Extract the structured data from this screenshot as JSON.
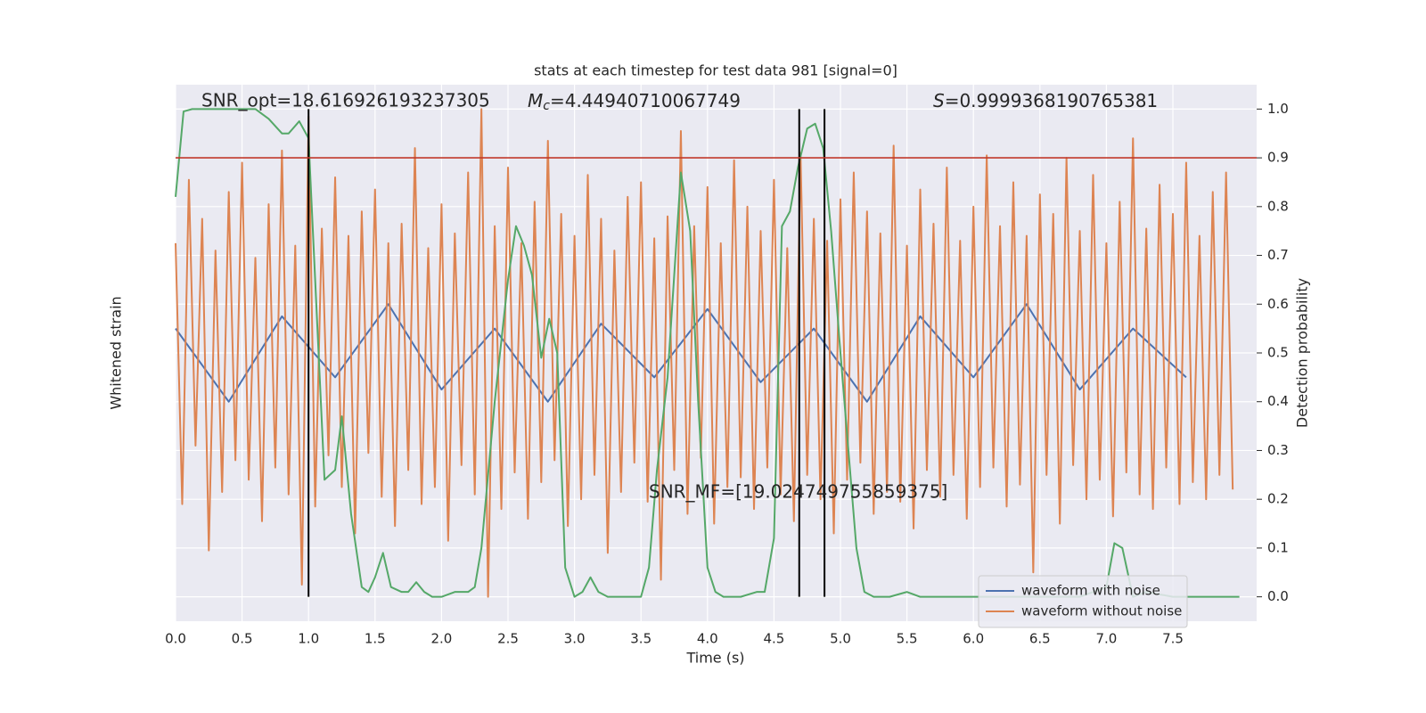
{
  "chart_data": {
    "type": "line",
    "title": "stats at each timestep for test data 981 [signal=0]",
    "xlabel": "Time (s)",
    "ylabel": "Detection probability",
    "y2label": "Whitened strain",
    "xlim": [
      0,
      8.13
    ],
    "ylim": [
      -0.05,
      1.05
    ],
    "y2lim": [
      -1.1,
      1.1
    ],
    "xticks": [
      {
        "value": 0,
        "label": "0.0"
      },
      0.5,
      {
        "value": 1,
        "label": "1.0"
      },
      1.5,
      {
        "value": 2,
        "label": "2.0"
      },
      2.5,
      {
        "value": 3,
        "label": "3.0"
      },
      3.5,
      {
        "value": 4,
        "label": "4.0"
      },
      4.5,
      {
        "value": 5,
        "label": "5.0"
      },
      5.5,
      {
        "value": 6,
        "label": "6.0"
      },
      6.5,
      {
        "value": 7,
        "label": "7.0"
      },
      7.5
    ],
    "yticks": [
      {
        "value": 0,
        "label": "0.0"
      },
      0.1,
      0.2,
      0.3,
      0.4,
      0.5,
      0.6,
      0.7,
      0.8,
      0.9,
      {
        "value": 1,
        "label": "1.0"
      }
    ],
    "grid": true,
    "legend": "lower right",
    "series": [
      {
        "name": "waveform with noise",
        "color": "#4c72b0",
        "axis": "y2",
        "x": [
          0,
          0.4,
          0.8,
          1.2,
          1.6,
          2.0,
          2.4,
          2.8,
          3.2,
          3.6,
          4.0,
          4.4,
          4.8,
          5.2,
          5.6,
          6.0,
          6.4,
          6.8,
          7.2,
          7.6
        ],
        "values": [
          0.1,
          -0.2,
          0.15,
          -0.1,
          0.2,
          -0.15,
          0.1,
          -0.2,
          0.12,
          -0.1,
          0.18,
          -0.12,
          0.1,
          -0.2,
          0.15,
          -0.1,
          0.2,
          -0.15,
          0.1,
          -0.1
        ]
      },
      {
        "name": "waveform without noise",
        "color": "#dd8452",
        "axis": "y2",
        "x": [
          0,
          0.05,
          0.1,
          0.15,
          0.2,
          0.25,
          0.3,
          0.35,
          0.4,
          0.45,
          0.5,
          0.55,
          0.6,
          0.65,
          0.7,
          0.75,
          0.8,
          0.85,
          0.9,
          0.95,
          1,
          1.05,
          1.1,
          1.15,
          1.2,
          1.25,
          1.3,
          1.35,
          1.4,
          1.45,
          1.5,
          1.55,
          1.6,
          1.65,
          1.7,
          1.75,
          1.8,
          1.85,
          1.9,
          1.95,
          2,
          2.05,
          2.1,
          2.15,
          2.2,
          2.25,
          2.3,
          2.35,
          2.4,
          2.45,
          2.5,
          2.55,
          2.6,
          2.65,
          2.7,
          2.75,
          2.8,
          2.85,
          2.9,
          2.95,
          3,
          3.05,
          3.1,
          3.15,
          3.2,
          3.25,
          3.3,
          3.35,
          3.4,
          3.45,
          3.5,
          3.55,
          3.6,
          3.65,
          3.7,
          3.75,
          3.8,
          3.85,
          3.9,
          3.95,
          4,
          4.05,
          4.1,
          4.15,
          4.2,
          4.25,
          4.3,
          4.35,
          4.4,
          4.45,
          4.5,
          4.55,
          4.6,
          4.65,
          4.7,
          4.75,
          4.8,
          4.85,
          4.9,
          4.95,
          5,
          5.05,
          5.1,
          5.15,
          5.2,
          5.25,
          5.3,
          5.35,
          5.4,
          5.45,
          5.5,
          5.55,
          5.6,
          5.65,
          5.7,
          5.75,
          5.8,
          5.85,
          5.9,
          5.95,
          6,
          6.05,
          6.1,
          6.15,
          6.2,
          6.25,
          6.3,
          6.35,
          6.4,
          6.45,
          6.5,
          6.55,
          6.6,
          6.65,
          6.7,
          6.75,
          6.8,
          6.85,
          6.9,
          6.95,
          7,
          7.05,
          7.1,
          7.15,
          7.2,
          7.25,
          7.3,
          7.35,
          7.4,
          7.45,
          7.5,
          7.55,
          7.6,
          7.65,
          7.7,
          7.75,
          7.8,
          7.85,
          7.9,
          7.95
        ],
        "values": [
          0.45,
          -0.62,
          0.71,
          -0.38,
          0.55,
          -0.81,
          0.42,
          -0.57,
          0.66,
          -0.44,
          0.78,
          -0.52,
          0.39,
          -0.69,
          0.61,
          -0.47,
          0.83,
          -0.58,
          0.44,
          -0.95,
          0.97,
          -0.63,
          0.51,
          -0.42,
          0.72,
          -0.55,
          0.48,
          -0.74,
          0.58,
          -0.41,
          0.67,
          -0.59,
          0.45,
          -0.71,
          0.53,
          -0.48,
          0.84,
          -0.62,
          0.43,
          -0.55,
          0.61,
          -0.77,
          0.49,
          -0.46,
          0.74,
          -0.58,
          1.0,
          -1.0,
          0.52,
          -0.64,
          0.76,
          -0.49,
          0.45,
          -0.68,
          0.62,
          -0.53,
          0.87,
          -0.44,
          0.57,
          -0.71,
          0.48,
          -0.6,
          0.73,
          -0.5,
          0.55,
          -0.82,
          0.42,
          -0.57,
          0.64,
          -0.45,
          0.7,
          -0.61,
          0.47,
          -0.93,
          0.56,
          -0.48,
          0.91,
          -0.66,
          0.52,
          -0.43,
          0.68,
          -0.7,
          0.45,
          -0.55,
          0.79,
          -0.51,
          0.6,
          -0.64,
          0.5,
          -0.47,
          0.71,
          -0.58,
          0.43,
          -0.69,
          0.82,
          -0.5,
          0.55,
          -0.6,
          0.46,
          -0.74,
          0.63,
          -0.52,
          0.74,
          -0.45,
          0.58,
          -0.66,
          0.49,
          -0.57,
          0.85,
          -0.61,
          0.44,
          -0.72,
          0.67,
          -0.48,
          0.53,
          -0.59,
          0.76,
          -0.5,
          0.46,
          -0.68,
          0.6,
          -0.55,
          0.81,
          -0.47,
          0.52,
          -0.63,
          0.7,
          -0.54,
          0.48,
          -0.9,
          0.65,
          -0.5,
          0.57,
          -0.7,
          0.8,
          -0.46,
          0.5,
          -0.6,
          0.73,
          -0.52,
          0.45,
          -0.67,
          0.62,
          -0.49,
          0.88,
          -0.58,
          0.51,
          -0.64,
          0.69,
          -0.47,
          0.57,
          -0.62,
          0.78,
          -0.53,
          0.48,
          -0.6,
          0.66,
          -0.5,
          0.74,
          -0.56
        ]
      },
      {
        "color": "#55a868",
        "x": [
          0,
          0.06,
          0.125,
          0.25,
          0.4,
          0.5,
          0.6,
          0.7,
          0.8,
          0.85,
          0.93,
          1.0,
          1.12,
          1.2,
          1.25,
          1.32,
          1.4,
          1.45,
          1.5,
          1.56,
          1.62,
          1.7,
          1.75,
          1.81,
          1.87,
          1.93,
          2.0,
          2.1,
          2.2,
          2.25,
          2.3,
          2.4,
          2.5,
          2.56,
          2.62,
          2.68,
          2.75,
          2.81,
          2.87,
          2.93,
          3.0,
          3.06,
          3.12,
          3.18,
          3.25,
          3.5,
          3.56,
          3.62,
          3.7,
          3.8,
          3.87,
          3.93,
          4.0,
          4.06,
          4.12,
          4.25,
          4.37,
          4.43,
          4.5,
          4.56,
          4.62,
          4.68,
          4.75,
          4.81,
          4.87,
          4.93,
          5.0,
          5.06,
          5.12,
          5.18,
          5.25,
          5.37,
          5.5,
          5.6,
          5.75,
          6.0,
          6.5,
          6.8,
          7.0,
          7.06,
          7.12,
          7.2,
          7.3,
          7.5,
          7.75,
          8.0
        ],
        "values": [
          0.82,
          0.995,
          1.0,
          1.0,
          1.0,
          1.0,
          1.0,
          0.98,
          0.95,
          0.95,
          0.975,
          0.94,
          0.24,
          0.26,
          0.37,
          0.17,
          0.02,
          0.01,
          0.04,
          0.09,
          0.02,
          0.01,
          0.01,
          0.03,
          0.01,
          0.0,
          0.0,
          0.01,
          0.01,
          0.02,
          0.1,
          0.4,
          0.65,
          0.76,
          0.72,
          0.66,
          0.49,
          0.57,
          0.5,
          0.06,
          0.0,
          0.01,
          0.04,
          0.01,
          0.0,
          0.0,
          0.06,
          0.26,
          0.45,
          0.87,
          0.75,
          0.4,
          0.06,
          0.01,
          0.0,
          0.0,
          0.01,
          0.01,
          0.12,
          0.76,
          0.79,
          0.88,
          0.96,
          0.97,
          0.92,
          0.75,
          0.5,
          0.3,
          0.1,
          0.01,
          0.0,
          0.0,
          0.01,
          0.0,
          0.0,
          0.0,
          0.0,
          0.0,
          0.02,
          0.11,
          0.1,
          0.0,
          0.01,
          0.0,
          0.0,
          0.0
        ]
      }
    ],
    "vlines": [
      1.0,
      4.69,
      4.88
    ],
    "vline_span": [
      0,
      1
    ],
    "vline_color": "#000000",
    "hline": 0.9,
    "hline_color": "#c0392b",
    "annotations": {
      "snr_opt": "SNR_opt=18.616926193237305",
      "mc": {
        "symbol": "M",
        "subscript": "c",
        "text": "=4.44940710067749"
      },
      "s": {
        "symbol": "S",
        "text": "=0.9999368190765381"
      },
      "snr_mf": "SNR_MF=[19.024749755859375]"
    }
  }
}
